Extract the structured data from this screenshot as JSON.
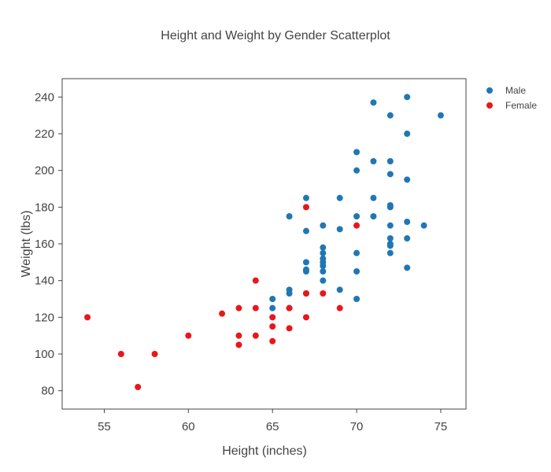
{
  "chart_data": {
    "type": "scatter",
    "title": "Height and Weight by Gender Scatterplot",
    "xlabel": "Height (inches)",
    "ylabel": "Weight (lbs)",
    "xlim": [
      52.5,
      76.5
    ],
    "ylim": [
      70,
      250
    ],
    "xticks": [
      55,
      60,
      65,
      70,
      75
    ],
    "yticks": [
      80,
      100,
      120,
      140,
      160,
      180,
      200,
      220,
      240
    ],
    "grid": false,
    "legend": "top-right",
    "series": [
      {
        "name": "Male",
        "color": "#1f77b4",
        "points": [
          [
            65,
            130
          ],
          [
            65,
            125
          ],
          [
            66,
            175
          ],
          [
            66,
            135
          ],
          [
            66,
            133
          ],
          [
            66,
            125
          ],
          [
            67,
            185
          ],
          [
            67,
            167
          ],
          [
            67,
            150
          ],
          [
            67,
            146
          ],
          [
            67,
            145
          ],
          [
            67,
            133
          ],
          [
            68,
            170
          ],
          [
            68,
            158
          ],
          [
            68,
            155
          ],
          [
            68,
            152
          ],
          [
            68,
            150
          ],
          [
            68,
            148
          ],
          [
            68,
            145
          ],
          [
            68,
            140
          ],
          [
            69,
            185
          ],
          [
            69,
            168
          ],
          [
            69,
            135
          ],
          [
            70,
            210
          ],
          [
            70,
            200
          ],
          [
            70,
            175
          ],
          [
            70,
            155
          ],
          [
            70,
            145
          ],
          [
            70,
            130
          ],
          [
            71,
            237
          ],
          [
            71,
            205
          ],
          [
            71,
            185
          ],
          [
            71,
            175
          ],
          [
            72,
            230
          ],
          [
            72,
            205
          ],
          [
            72,
            198
          ],
          [
            72,
            181
          ],
          [
            72,
            180
          ],
          [
            72,
            170
          ],
          [
            72,
            163
          ],
          [
            72,
            160
          ],
          [
            72,
            159
          ],
          [
            72,
            155
          ],
          [
            73,
            240
          ],
          [
            73,
            220
          ],
          [
            73,
            195
          ],
          [
            73,
            172
          ],
          [
            73,
            163
          ],
          [
            73,
            147
          ],
          [
            74,
            170
          ],
          [
            75,
            230
          ]
        ]
      },
      {
        "name": "Female",
        "color": "#e8171b",
        "points": [
          [
            54,
            120
          ],
          [
            56,
            100
          ],
          [
            57,
            82
          ],
          [
            58,
            100
          ],
          [
            60,
            110
          ],
          [
            62,
            122
          ],
          [
            63,
            125
          ],
          [
            63,
            110
          ],
          [
            63,
            105
          ],
          [
            64,
            140
          ],
          [
            64,
            125
          ],
          [
            64,
            110
          ],
          [
            65,
            120
          ],
          [
            65,
            115
          ],
          [
            65,
            107
          ],
          [
            66,
            125
          ],
          [
            66,
            114
          ],
          [
            67,
            180
          ],
          [
            67,
            133
          ],
          [
            67,
            120
          ],
          [
            68,
            133
          ],
          [
            69,
            125
          ],
          [
            70,
            170
          ]
        ]
      }
    ]
  }
}
